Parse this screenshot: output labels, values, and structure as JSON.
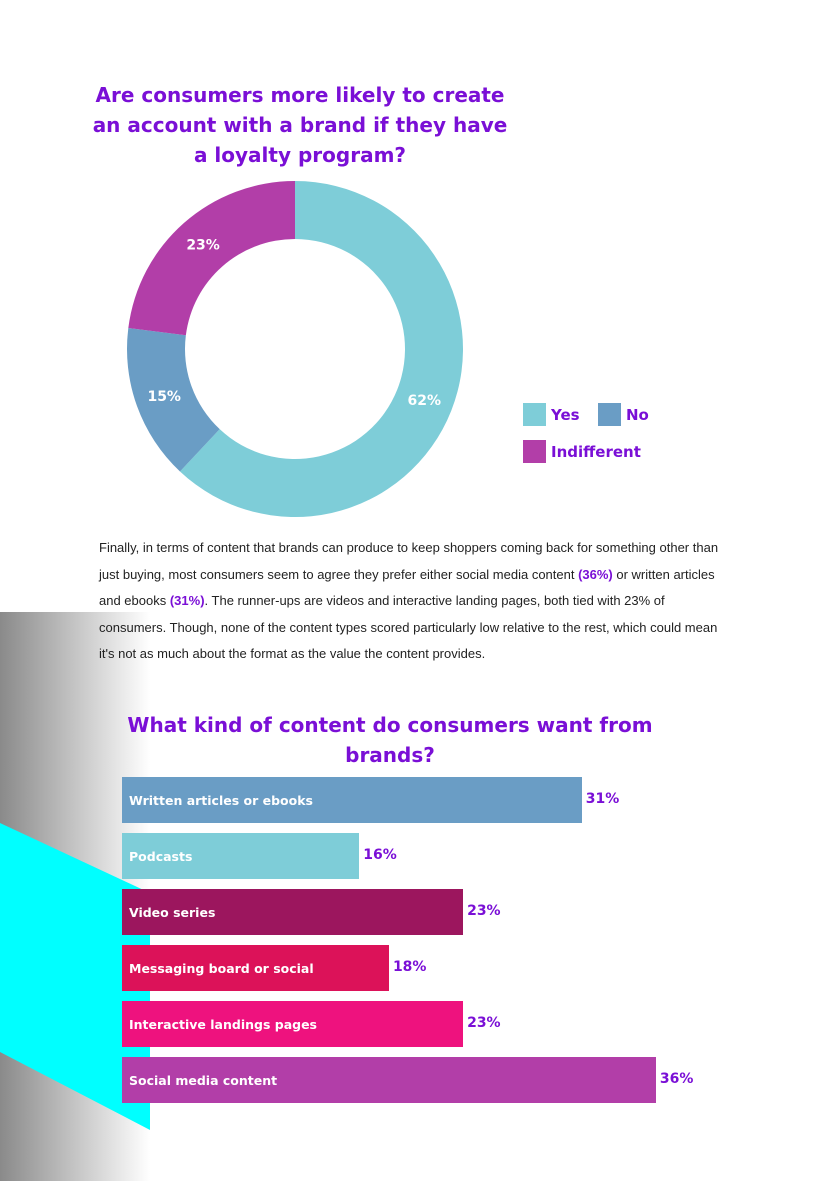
{
  "colors": {
    "accent": "#7a0fd6",
    "cyan": "#00ffff",
    "yes": "#7ecdd8",
    "no": "#6a9dc5",
    "indifferent": "#b23ea8"
  },
  "paragraph": {
    "part1": "Finally, in terms of content that brands can produce to keep shoppers coming back for something other than just buying, most consumers seem to agree they prefer either social media content ",
    "hl1": "(36%)",
    "part2": " or written articles and ebooks ",
    "hl2": "(31%)",
    "part3": ". The runner-ups are videos and interactive landing pages, both tied with 23% of consumers. Though, none of the content types scored particularly low relative to the rest, which could mean it's not as much about the format as the value the content provides."
  },
  "chart_data": [
    {
      "type": "pie",
      "title": "Are consumers more likely to create an account with a brand if they have a loyalty program?",
      "slices": [
        {
          "name": "Yes",
          "value": 62,
          "label": "62%",
          "color": "#7ecdd8"
        },
        {
          "name": "No",
          "value": 15,
          "label": "15%",
          "color": "#6a9dc5"
        },
        {
          "name": "Indifferent",
          "value": 23,
          "label": "23%",
          "color": "#b23ea8"
        }
      ],
      "legend": "right"
    },
    {
      "type": "bar",
      "orientation": "horizontal",
      "title": "What kind of content do consumers want from brands?",
      "xlim": [
        0,
        40
      ],
      "bars": [
        {
          "category": "Written articles or ebooks",
          "value": 31,
          "label": "31%",
          "color": "#6a9dc5"
        },
        {
          "category": "Podcasts",
          "value": 16,
          "label": "16%",
          "color": "#7ecdd8"
        },
        {
          "category": "Video series",
          "value": 23,
          "label": "23%",
          "color": "#9c165e"
        },
        {
          "category": "Messaging board or social",
          "value": 18,
          "label": "18%",
          "color": "#dc1259"
        },
        {
          "category": "Interactive landings pages",
          "value": 23,
          "label": "23%",
          "color": "#ee127e"
        },
        {
          "category": "Social media content",
          "value": 36,
          "label": "36%",
          "color": "#b23ea8"
        }
      ]
    }
  ]
}
